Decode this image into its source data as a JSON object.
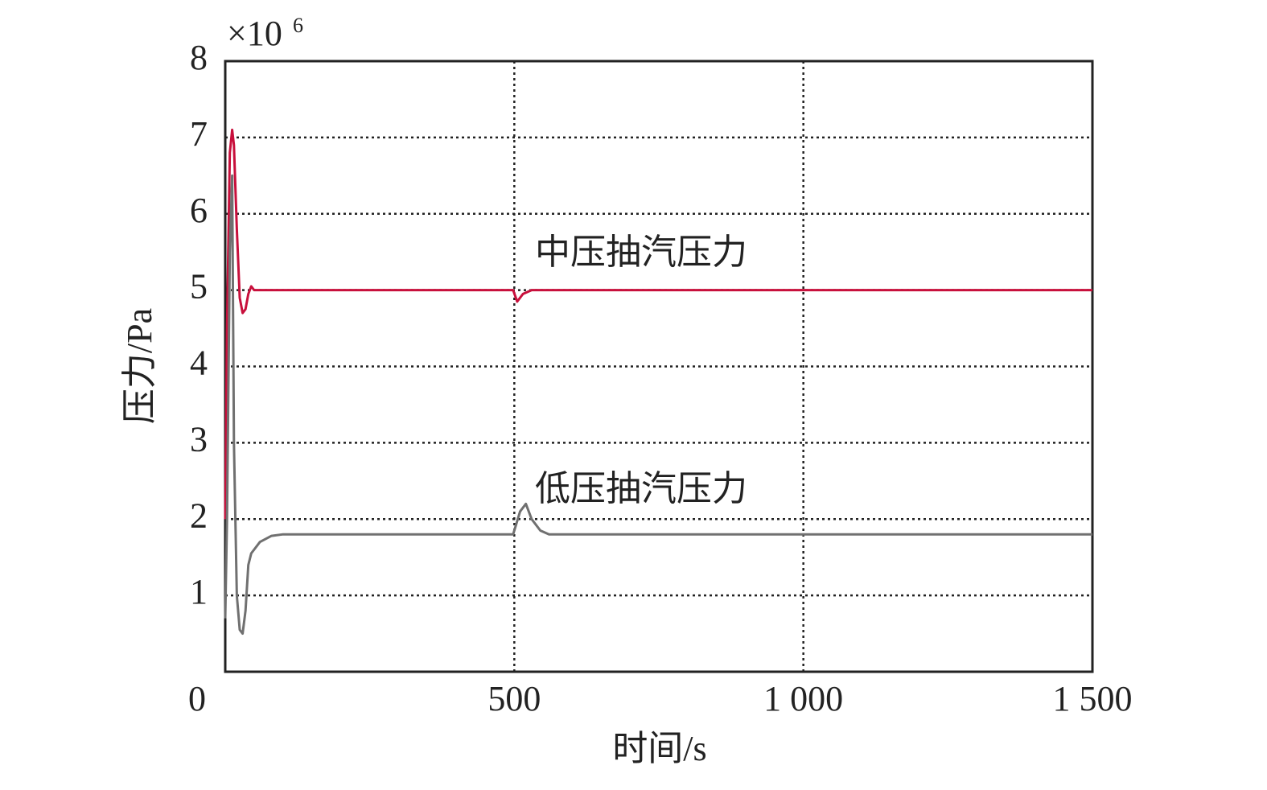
{
  "chart_data": {
    "type": "line",
    "x_label": "时间/s",
    "y_label": "压力/Pa",
    "axis_multiplier": {
      "base": "×10",
      "exponent": "6"
    },
    "annotations": [
      "中压抽汽压力",
      "低压抽汽压力"
    ],
    "xlim": [
      0,
      1500
    ],
    "ylim": [
      0,
      8
    ],
    "xticks": [
      0,
      500,
      {
        "value": 1000,
        "label": "1 000"
      },
      {
        "value": 1500,
        "label": "1 500"
      }
    ],
    "yticks": [
      1,
      2,
      3,
      4,
      5,
      6,
      7,
      8
    ],
    "grid": true,
    "series": [
      {
        "name": "中压抽汽压力",
        "color": "#c8103c",
        "x": [
          0,
          3,
          8,
          12,
          15,
          20,
          25,
          30,
          35,
          40,
          45,
          50,
          60,
          100,
          498,
          505,
          515,
          530,
          1500
        ],
        "values": [
          2.0,
          4.5,
          6.8,
          7.1,
          6.9,
          5.8,
          4.9,
          4.7,
          4.75,
          4.95,
          5.05,
          5.0,
          5.0,
          5.0,
          5.0,
          4.85,
          4.95,
          5.0,
          5.0
        ]
      },
      {
        "name": "低压抽汽压力",
        "color": "#707070",
        "x": [
          0,
          3,
          8,
          12,
          15,
          20,
          25,
          30,
          35,
          40,
          45,
          60,
          80,
          100,
          498,
          510,
          520,
          530,
          545,
          560,
          1500
        ],
        "values": [
          0.7,
          2.0,
          5.5,
          6.5,
          3.0,
          1.0,
          0.55,
          0.5,
          0.8,
          1.4,
          1.55,
          1.7,
          1.78,
          1.8,
          1.8,
          2.1,
          2.2,
          2.0,
          1.85,
          1.8,
          1.8
        ]
      }
    ]
  }
}
